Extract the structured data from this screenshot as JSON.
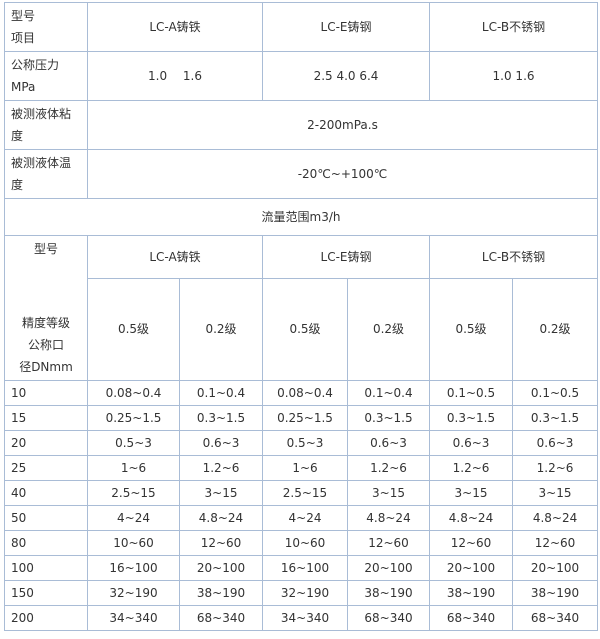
{
  "spec_table": {
    "header": {
      "label": "型号\n项目",
      "models": [
        "LC-A铸铁",
        "LC-E铸钢",
        "LC-B不锈钢"
      ]
    },
    "rows": [
      {
        "label": "公称压力\nMPa",
        "values": [
          "1.0　 1.6",
          "2.5 4.0 6.4",
          "1.0 1.6"
        ]
      },
      {
        "label": "被测液体粘\n度",
        "values": [
          "2-200mPa.s"
        ]
      },
      {
        "label": "被测液体温\n度",
        "values": [
          "-20℃~+100℃"
        ]
      }
    ]
  },
  "flow_table": {
    "title": "流量范围m3/h",
    "model_label": "型号",
    "dn_label": "精度等级\n公称口\n径DNmm",
    "models": [
      "LC-A铸铁",
      "LC-E铸钢",
      "LC-B不锈钢"
    ],
    "grades": [
      "0.5级",
      "0.2级",
      "0.5级",
      "0.2级",
      "0.5级",
      "0.2级"
    ],
    "rows": [
      [
        "10",
        "0.08~0.4",
        "0.1~0.4",
        "0.08~0.4",
        "0.1~0.4",
        "0.1~0.5",
        "0.1~0.5"
      ],
      [
        "15",
        "0.25~1.5",
        "0.3~1.5",
        "0.25~1.5",
        "0.3~1.5",
        "0.3~1.5",
        "0.3~1.5"
      ],
      [
        "20",
        "0.5~3",
        "0.6~3",
        "0.5~3",
        "0.6~3",
        "0.6~3",
        "0.6~3"
      ],
      [
        "25",
        "1~6",
        "1.2~6",
        "1~6",
        "1.2~6",
        "1.2~6",
        "1.2~6"
      ],
      [
        "40",
        "2.5~15",
        "3~15",
        "2.5~15",
        "3~15",
        "3~15",
        "3~15"
      ],
      [
        "50",
        "4~24",
        "4.8~24",
        "4~24",
        "4.8~24",
        "4.8~24",
        "4.8~24"
      ],
      [
        "80",
        "10~60",
        "12~60",
        "10~60",
        "12~60",
        "12~60",
        "12~60"
      ],
      [
        "100",
        "16~100",
        "20~100",
        "16~100",
        "20~100",
        "20~100",
        "20~100"
      ],
      [
        "150",
        "32~190",
        "38~190",
        "32~190",
        "38~190",
        "38~190",
        "38~190"
      ],
      [
        "200",
        "34~340",
        "68~340",
        "34~340",
        "68~340",
        "68~340",
        "68~340"
      ]
    ]
  }
}
